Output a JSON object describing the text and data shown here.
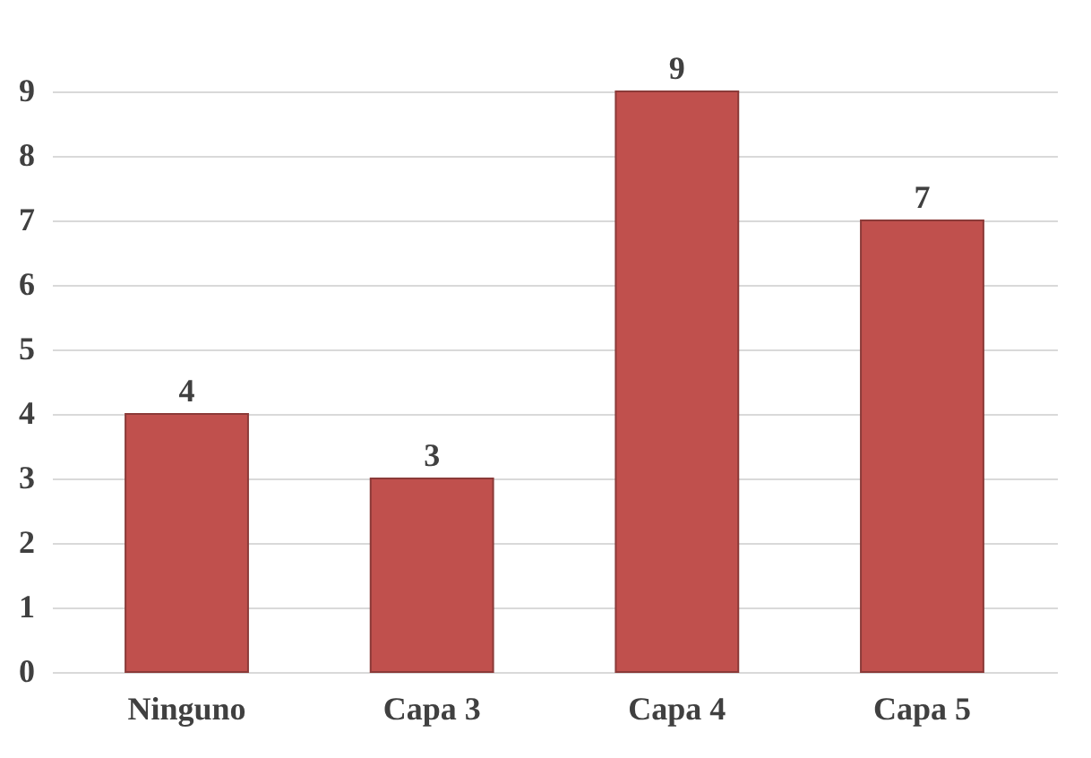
{
  "chart_data": {
    "type": "bar",
    "categories": [
      "Ninguno",
      "Capa 3",
      "Capa 4",
      "Capa 5"
    ],
    "values": [
      4,
      3,
      9,
      7
    ],
    "color": "#c0504d",
    "ylim": [
      0,
      9
    ],
    "yticks": [
      0,
      1,
      2,
      3,
      4,
      5,
      6,
      7,
      8,
      9
    ],
    "grid": "y",
    "data_labels": true
  }
}
